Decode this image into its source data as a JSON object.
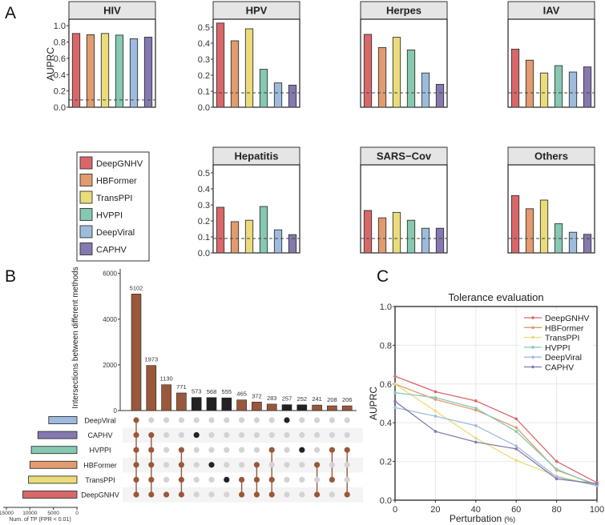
{
  "colors": {
    "methods": {
      "DeepGNHV": "#D9676A",
      "HBFormer": "#E29A6E",
      "TransPPI": "#EADC7A",
      "HVPPI": "#86C8B0",
      "DeepViral": "#9DBCDD",
      "CAPHV": "#8678B0"
    },
    "upset_multi": "#99583A",
    "upset_single": "#222222",
    "upset_inactive": "#D3D3D3",
    "strip_bg": "#E5E5E5"
  },
  "panels": {
    "A": {
      "letter": "A"
    },
    "B": {
      "letter": "B"
    },
    "C": {
      "letter": "C"
    }
  },
  "chart_data": [
    {
      "id": "A",
      "type": "bar",
      "facet": true,
      "ylabel": "AUPRC",
      "categories": [
        "DeepGNHV",
        "HBFormer",
        "TransPPI",
        "HVPPI",
        "DeepViral",
        "CAPHV"
      ],
      "legend": {
        "placement": "left-of-second-row",
        "entries": [
          "DeepGNHV",
          "HBFormer",
          "TransPPI",
          "HVPPI",
          "DeepViral",
          "CAPHV"
        ]
      },
      "facets": [
        {
          "title": "HIV",
          "ylim": [
            0,
            1.08
          ],
          "yticks": [
            "0.0",
            "0.2",
            "0.4",
            "0.6",
            "0.8",
            "1.0"
          ],
          "ytick_values": [
            0,
            0.2,
            0.4,
            0.6,
            0.8,
            1.0
          ],
          "baseline": 0.09,
          "values": [
            0.905,
            0.89,
            0.905,
            0.885,
            0.84,
            0.86
          ]
        },
        {
          "title": "HPV",
          "ylim": [
            0,
            0.55
          ],
          "yticks": [
            "0.0",
            "0.1",
            "0.2",
            "0.3",
            "0.4",
            "0.5"
          ],
          "ytick_values": [
            0,
            0.1,
            0.2,
            0.3,
            0.4,
            0.5
          ],
          "baseline": 0.09,
          "values": [
            0.526,
            0.415,
            0.49,
            0.237,
            0.152,
            0.138
          ]
        },
        {
          "title": "Herpes",
          "ylim": [
            0,
            0.55
          ],
          "yticks": [],
          "ytick_values": [],
          "baseline": 0.09,
          "values": [
            0.455,
            0.373,
            0.437,
            0.358,
            0.214,
            0.143
          ]
        },
        {
          "title": "IAV",
          "ylim": [
            0,
            0.55
          ],
          "yticks": [],
          "ytick_values": [],
          "baseline": 0.09,
          "values": [
            0.363,
            0.294,
            0.214,
            0.26,
            0.22,
            0.252
          ]
        },
        {
          "title": "Hepatitis",
          "ylim": [
            0,
            0.55
          ],
          "yticks": [
            "0.0",
            "0.1",
            "0.2",
            "0.3",
            "0.4",
            "0.5"
          ],
          "ytick_values": [
            0,
            0.1,
            0.2,
            0.3,
            0.4,
            0.5
          ],
          "baseline": 0.09,
          "values": [
            0.285,
            0.195,
            0.204,
            0.29,
            0.144,
            0.114
          ]
        },
        {
          "title": "SARS−Cov",
          "ylim": [
            0,
            0.55
          ],
          "yticks": [],
          "ytick_values": [],
          "baseline": 0.09,
          "values": [
            0.265,
            0.219,
            0.253,
            0.204,
            0.154,
            0.154
          ]
        },
        {
          "title": "Others",
          "ylim": [
            0,
            0.55
          ],
          "yticks": [],
          "ytick_values": [],
          "baseline": 0.09,
          "values": [
            0.358,
            0.276,
            0.33,
            0.182,
            0.129,
            0.116
          ]
        }
      ]
    },
    {
      "id": "B",
      "type": "bar",
      "subtype": "upset",
      "ylabel": "Intersections between different methods",
      "ylim": [
        0,
        6200
      ],
      "yticks": [
        "0",
        "2000",
        "4000",
        "6000"
      ],
      "ytick_values": [
        0,
        2000,
        4000,
        6000
      ],
      "sets": [
        "DeepViral",
        "CAPHV",
        "HVPPI",
        "HBFormer",
        "TransPPI",
        "DeepGNHV"
      ],
      "set_sizes": [
        6000,
        8300,
        9700,
        10000,
        10300,
        11500
      ],
      "set_size_label": "Num. of TP (FPR < 0.01)",
      "set_size_ticks": [
        "15000",
        "10000",
        "5000",
        "0"
      ],
      "set_size_tick_values": [
        15000,
        10000,
        5000,
        0
      ],
      "intersections": [
        {
          "count": 5102,
          "members": [
            "DeepViral",
            "CAPHV",
            "HVPPI",
            "HBFormer",
            "TransPPI",
            "DeepGNHV"
          ]
        },
        {
          "count": 1973,
          "members": [
            "CAPHV",
            "HVPPI",
            "HBFormer",
            "TransPPI",
            "DeepGNHV"
          ]
        },
        {
          "count": 1130,
          "members": [
            "DeepGNHV"
          ]
        },
        {
          "count": 771,
          "members": [
            "HVPPI",
            "HBFormer",
            "TransPPI",
            "DeepGNHV"
          ]
        },
        {
          "count": 573,
          "members": [
            "CAPHV"
          ]
        },
        {
          "count": 568,
          "members": [
            "HBFormer"
          ]
        },
        {
          "count": 555,
          "members": [
            "TransPPI"
          ]
        },
        {
          "count": 465,
          "members": [
            "TransPPI",
            "DeepGNHV"
          ]
        },
        {
          "count": 372,
          "members": [
            "HBFormer",
            "TransPPI",
            "DeepGNHV"
          ]
        },
        {
          "count": 283,
          "members": [
            "HVPPI",
            "TransPPI",
            "DeepGNHV"
          ]
        },
        {
          "count": 257,
          "members": [
            "DeepViral"
          ]
        },
        {
          "count": 252,
          "members": [
            "HVPPI"
          ]
        },
        {
          "count": 241,
          "members": [
            "HBFormer",
            "DeepGNHV"
          ]
        },
        {
          "count": 208,
          "members": [
            "HVPPI",
            "TransPPI"
          ]
        },
        {
          "count": 206,
          "members": [
            "HVPPI",
            "DeepGNHV"
          ]
        }
      ]
    },
    {
      "id": "C",
      "type": "line",
      "title": "Tolerance evaluation",
      "xlabel": "Perturbation",
      "xlabel_unit": "(%)",
      "ylabel": "AUPRC",
      "xlim": [
        0,
        100
      ],
      "ylim": [
        0,
        1.0
      ],
      "x": [
        0,
        20,
        40,
        60,
        80,
        100
      ],
      "xticks": [
        "0",
        "20",
        "40",
        "60",
        "80",
        "100"
      ],
      "yticks": [
        "0.0",
        "0.2",
        "0.4",
        "0.6",
        "0.8",
        "1.0"
      ],
      "ytick_values": [
        0,
        0.2,
        0.4,
        0.6,
        0.8,
        1.0
      ],
      "grid": true,
      "legend_placement": "top-right",
      "series": [
        {
          "name": "DeepGNHV",
          "values": [
            0.64,
            0.56,
            0.513,
            0.42,
            0.2,
            0.09
          ]
        },
        {
          "name": "HBFormer",
          "values": [
            0.6,
            0.52,
            0.465,
            0.375,
            0.155,
            0.08
          ]
        },
        {
          "name": "TransPPI",
          "values": [
            0.6,
            0.46,
            0.32,
            0.205,
            0.125,
            0.075
          ]
        },
        {
          "name": "HVPPI",
          "values": [
            0.555,
            0.53,
            0.475,
            0.355,
            0.16,
            0.075
          ]
        },
        {
          "name": "DeepViral",
          "values": [
            0.478,
            0.434,
            0.385,
            0.28,
            0.12,
            0.075
          ]
        },
        {
          "name": "CAPHV",
          "values": [
            0.51,
            0.355,
            0.3,
            0.265,
            0.11,
            0.085
          ]
        }
      ]
    }
  ]
}
